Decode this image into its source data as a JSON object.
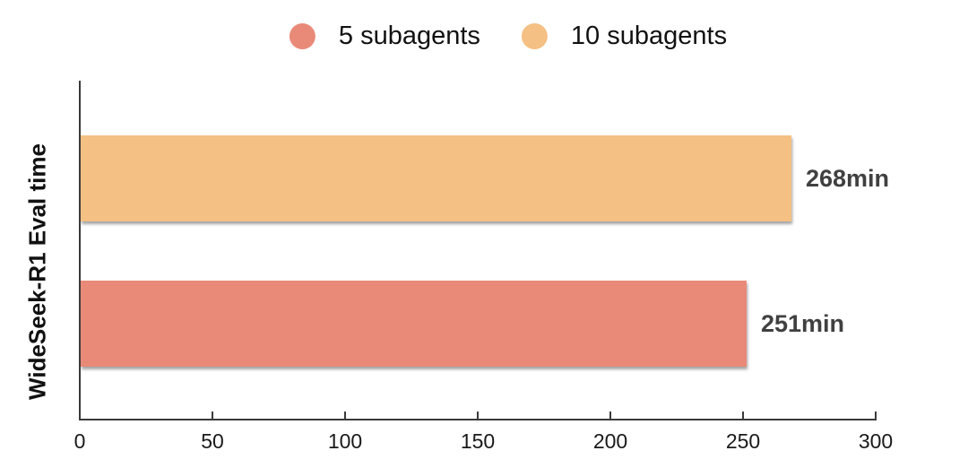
{
  "chart_data": {
    "type": "bar",
    "orientation": "horizontal",
    "title": "",
    "xlabel": "",
    "ylabel": "WideSeek-R1 Eval time",
    "categories": [
      "WideSeek-R1 Eval time"
    ],
    "series": [
      {
        "name": "5 subagents",
        "value": 251,
        "value_label": "251min",
        "color": "#E98A78"
      },
      {
        "name": "10 subagents",
        "value": 268,
        "value_label": "268min",
        "color": "#F5C083"
      }
    ],
    "xlim": [
      0,
      300
    ],
    "xticks": [
      0,
      50,
      100,
      150,
      200,
      250,
      300
    ],
    "legend_position": "top",
    "grid": false,
    "bar_order_top_to_bottom": [
      "10 subagents",
      "5 subagents"
    ]
  },
  "colors": {
    "axis": "#3A3A3A",
    "tick_label": "#1A1A1A",
    "value_label": "#404040",
    "background": "#FFFFFF"
  }
}
